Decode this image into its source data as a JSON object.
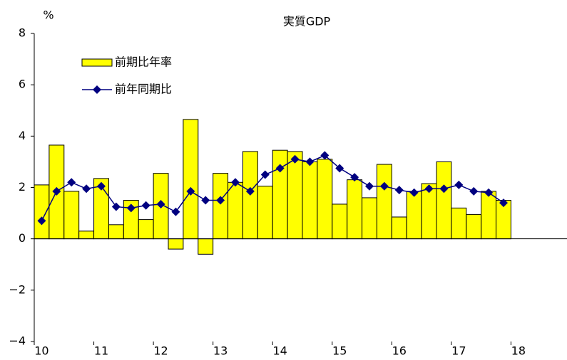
{
  "chart_data": {
    "type": "bar_line",
    "title": "実質GDP",
    "y_label": "%",
    "categories": [
      "10",
      null,
      null,
      null,
      "11",
      null,
      null,
      null,
      "12",
      null,
      null,
      null,
      "13",
      null,
      null,
      null,
      "14",
      null,
      null,
      null,
      "15",
      null,
      null,
      null,
      "16",
      null,
      null,
      null,
      "17",
      null,
      null,
      null,
      "18",
      null,
      null,
      null
    ],
    "series": [
      {
        "name": "前期比年率",
        "type": "bar",
        "color": "#ffff00",
        "values": [
          2.1,
          3.65,
          1.85,
          0.3,
          2.35,
          0.55,
          1.5,
          0.75,
          2.55,
          -0.4,
          4.65,
          -0.6,
          2.55,
          2.2,
          3.4,
          2.05,
          3.45,
          3.4,
          3.0,
          3.1,
          1.35,
          2.3,
          1.6,
          2.9,
          0.85,
          1.85,
          2.15,
          3.0,
          1.2,
          0.95,
          1.85,
          1.5,
          null,
          null,
          null,
          null
        ]
      },
      {
        "name": "前年同期比",
        "type": "line",
        "color": "#000080",
        "values": [
          0.7,
          1.85,
          2.2,
          1.95,
          2.05,
          1.25,
          1.2,
          1.3,
          1.35,
          1.05,
          1.85,
          1.5,
          1.5,
          2.2,
          1.85,
          2.5,
          2.75,
          3.1,
          3.0,
          3.25,
          2.75,
          2.4,
          2.05,
          2.05,
          1.9,
          1.8,
          1.95,
          1.95,
          2.1,
          1.85,
          1.8,
          1.4,
          null,
          null,
          null,
          null
        ]
      }
    ],
    "ylim": [
      -4,
      8
    ],
    "yticks": [
      {
        "value": -4,
        "label": "−4"
      },
      {
        "value": -2,
        "label": "−2"
      },
      0,
      2,
      4,
      6,
      8
    ],
    "grid": false,
    "legend": "upper left"
  }
}
